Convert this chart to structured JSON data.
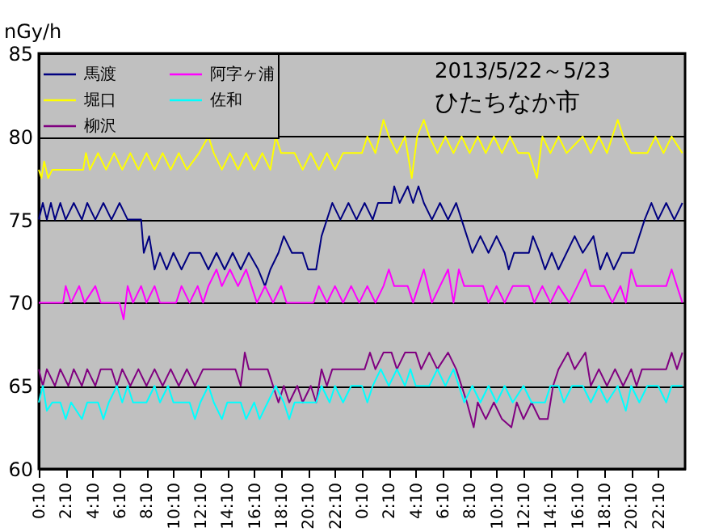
{
  "chart_data": {
    "type": "line",
    "title": "2013/5/22～5/23",
    "subtitle": "ひたちなか市",
    "ylabel": "nGy/h",
    "ylim": [
      60,
      85
    ],
    "yticks": [
      60,
      65,
      70,
      75,
      80,
      85
    ],
    "xlim": [
      "2013-05-22T00:10",
      "2013-05-24T00:10"
    ],
    "xticks": [
      {
        "value": "2013-05-22T00:10",
        "label": "0:10"
      },
      {
        "value": "2013-05-22T02:10",
        "label": "2:10"
      },
      {
        "value": "2013-05-22T04:10",
        "label": "4:10"
      },
      {
        "value": "2013-05-22T06:10",
        "label": "6:10"
      },
      {
        "value": "2013-05-22T08:10",
        "label": "8:10"
      },
      {
        "value": "2013-05-22T10:10",
        "label": "10:10"
      },
      {
        "value": "2013-05-22T12:10",
        "label": "12:10"
      },
      {
        "value": "2013-05-22T14:10",
        "label": "14:10"
      },
      {
        "value": "2013-05-22T16:10",
        "label": "16:10"
      },
      {
        "value": "2013-05-22T18:10",
        "label": "18:10"
      },
      {
        "value": "2013-05-22T20:10",
        "label": "20:10"
      },
      {
        "value": "2013-05-22T22:10",
        "label": "22:10"
      },
      {
        "value": "2013-05-23T00:10",
        "label": "0:10"
      },
      {
        "value": "2013-05-23T02:10",
        "label": "2:10"
      },
      {
        "value": "2013-05-23T04:10",
        "label": "4:10"
      },
      {
        "value": "2013-05-23T06:10",
        "label": "6:10"
      },
      {
        "value": "2013-05-23T08:10",
        "label": "8:10"
      },
      {
        "value": "2013-05-23T10:10",
        "label": "10:10"
      },
      {
        "value": "2013-05-23T12:10",
        "label": "12:10"
      },
      {
        "value": "2013-05-23T14:10",
        "label": "14:10"
      },
      {
        "value": "2013-05-23T16:10",
        "label": "16:10"
      },
      {
        "value": "2013-05-23T18:10",
        "label": "18:10"
      },
      {
        "value": "2013-05-23T20:10",
        "label": "20:10"
      },
      {
        "value": "2013-05-23T22:10",
        "label": "22:10"
      }
    ],
    "grid": "y",
    "legend": "top left",
    "series": [
      {
        "name": "馬渡",
        "color": "#000080",
        "x": [
          "2013-05-22T00:10",
          "2013-05-22T00:28",
          "2013-05-22T00:46",
          "2013-05-22T01:04",
          "2013-05-22T01:22",
          "2013-05-22T01:46",
          "2013-05-22T02:10",
          "2013-05-22T02:46",
          "2013-05-22T03:22",
          "2013-05-22T03:46",
          "2013-05-22T04:22",
          "2013-05-22T04:58",
          "2013-05-22T05:34",
          "2013-05-22T06:10",
          "2013-05-22T06:46",
          "2013-05-22T07:46",
          "2013-05-22T07:58",
          "2013-05-22T08:22",
          "2013-05-22T08:46",
          "2013-05-22T09:10",
          "2013-05-22T09:40",
          "2013-05-22T10:10",
          "2013-05-22T10:46",
          "2013-05-22T11:22",
          "2013-05-22T12:10",
          "2013-05-22T12:46",
          "2013-05-22T13:22",
          "2013-05-22T13:58",
          "2013-05-22T14:34",
          "2013-05-22T15:10",
          "2013-05-22T15:46",
          "2013-05-22T16:28",
          "2013-05-22T16:58",
          "2013-05-22T17:22",
          "2013-05-22T17:58",
          "2013-05-22T18:22",
          "2013-05-22T18:58",
          "2013-05-22T19:46",
          "2013-05-22T20:10",
          "2013-05-22T20:46",
          "2013-05-22T21:10",
          "2013-05-22T21:34",
          "2013-05-22T21:58",
          "2013-05-22T22:34",
          "2013-05-22T23:10",
          "2013-05-22T23:46",
          "2013-05-23T00:22",
          "2013-05-23T00:58",
          "2013-05-23T01:22",
          "2013-05-23T02:22",
          "2013-05-23T02:34",
          "2013-05-23T02:58",
          "2013-05-23T03:34",
          "2013-05-23T03:58",
          "2013-05-23T04:22",
          "2013-05-23T04:46",
          "2013-05-23T05:22",
          "2013-05-23T05:58",
          "2013-05-23T06:34",
          "2013-05-23T07:10",
          "2013-05-23T07:34",
          "2013-05-23T07:58",
          "2013-05-23T08:22",
          "2013-05-23T08:58",
          "2013-05-23T09:34",
          "2013-05-23T10:10",
          "2013-05-23T10:46",
          "2013-05-23T11:04",
          "2013-05-23T11:28",
          "2013-05-23T12:34",
          "2013-05-23T12:52",
          "2013-05-23T13:22",
          "2013-05-23T13:46",
          "2013-05-23T14:16",
          "2013-05-23T14:46",
          "2013-05-23T15:22",
          "2013-05-23T15:58",
          "2013-05-23T16:34",
          "2013-05-23T17:22",
          "2013-05-23T17:52",
          "2013-05-23T18:22",
          "2013-05-23T18:52",
          "2013-05-23T19:28",
          "2013-05-23T20:22",
          "2013-05-23T20:46",
          "2013-05-23T21:10",
          "2013-05-23T21:40",
          "2013-05-23T22:10",
          "2013-05-23T22:46",
          "2013-05-23T23:22",
          "2013-05-23T23:58"
        ],
        "values": [
          75,
          76,
          75,
          76,
          75,
          76,
          75,
          76,
          75,
          76,
          75,
          76,
          75,
          76,
          75,
          75,
          73,
          74,
          72,
          73,
          72,
          73,
          72,
          73,
          73,
          72,
          73,
          72,
          73,
          72,
          73,
          72,
          71,
          72,
          73,
          74,
          73,
          73,
          72,
          72,
          74,
          75,
          76,
          75,
          76,
          75,
          76,
          75,
          76,
          76,
          77,
          76,
          77,
          76,
          77,
          76,
          75,
          76,
          75,
          76,
          75,
          74,
          73,
          74,
          73,
          74,
          73,
          72,
          73,
          73,
          74,
          73,
          72,
          73,
          72,
          73,
          74,
          73,
          74,
          72,
          73,
          72,
          73,
          73,
          74,
          75,
          76,
          75,
          76,
          75,
          76
        ]
      },
      {
        "name": "堀口",
        "color": "#ffff00",
        "x": [
          "2013-05-22T00:10",
          "2013-05-22T00:22",
          "2013-05-22T00:34",
          "2013-05-22T00:52",
          "2013-05-22T01:10",
          "2013-05-22T03:28",
          "2013-05-22T03:40",
          "2013-05-22T03:58",
          "2013-05-22T04:34",
          "2013-05-22T05:10",
          "2013-05-22T05:46",
          "2013-05-22T06:22",
          "2013-05-22T06:58",
          "2013-05-22T07:34",
          "2013-05-22T08:10",
          "2013-05-22T08:46",
          "2013-05-22T09:22",
          "2013-05-22T09:58",
          "2013-05-22T10:34",
          "2013-05-22T11:10",
          "2013-05-22T12:04",
          "2013-05-22T12:46",
          "2013-05-22T13:10",
          "2013-05-22T13:46",
          "2013-05-22T14:22",
          "2013-05-22T14:58",
          "2013-05-22T15:34",
          "2013-05-22T16:10",
          "2013-05-22T16:46",
          "2013-05-22T17:22",
          "2013-05-22T17:46",
          "2013-05-22T18:10",
          "2013-05-22T19:10",
          "2013-05-22T19:46",
          "2013-05-22T20:22",
          "2013-05-22T20:58",
          "2013-05-22T21:34",
          "2013-05-22T22:10",
          "2013-05-22T22:46",
          "2013-05-22T23:34",
          "2013-05-23T00:10",
          "2013-05-23T00:34",
          "2013-05-23T01:10",
          "2013-05-23T01:46",
          "2013-05-23T02:10",
          "2013-05-23T02:46",
          "2013-05-23T03:22",
          "2013-05-23T03:52",
          "2013-05-23T04:16",
          "2013-05-23T04:46",
          "2013-05-23T05:10",
          "2013-05-23T05:46",
          "2013-05-23T06:22",
          "2013-05-23T06:58",
          "2013-05-23T07:34",
          "2013-05-23T08:10",
          "2013-05-23T08:46",
          "2013-05-23T09:22",
          "2013-05-23T09:58",
          "2013-05-23T10:34",
          "2013-05-23T11:10",
          "2013-05-23T11:46",
          "2013-05-23T12:34",
          "2013-05-23T13:10",
          "2013-05-23T13:34",
          "2013-05-23T14:10",
          "2013-05-23T14:46",
          "2013-05-23T15:22",
          "2013-05-23T16:34",
          "2013-05-23T17:10",
          "2013-05-23T17:46",
          "2013-05-23T18:22",
          "2013-05-23T19:10",
          "2013-05-23T19:34",
          "2013-05-23T20:10",
          "2013-05-23T21:22",
          "2013-05-23T21:58",
          "2013-05-23T22:34",
          "2013-05-23T23:10",
          "2013-05-23T23:58"
        ],
        "values": [
          78,
          77.5,
          78.5,
          77.5,
          78,
          78,
          79,
          78,
          79,
          78,
          79,
          78,
          79,
          78,
          79,
          78,
          79,
          78,
          79,
          78,
          79,
          80,
          79,
          78,
          79,
          78,
          79,
          78,
          79,
          78,
          80,
          79,
          79,
          78,
          79,
          78,
          79,
          78,
          79,
          79,
          79,
          80,
          79,
          81,
          80,
          79,
          80,
          77.5,
          80,
          81,
          80,
          79,
          80,
          79,
          80,
          79,
          80,
          79,
          80,
          79,
          80,
          79,
          79,
          77.5,
          80,
          79,
          80,
          79,
          80,
          79,
          80,
          79,
          81,
          80,
          79,
          79,
          80,
          79,
          80,
          79
        ]
      },
      {
        "name": "柳沢",
        "color": "#800080",
        "x": [
          "2013-05-22T00:10",
          "2013-05-22T00:28",
          "2013-05-22T00:46",
          "2013-05-22T01:22",
          "2013-05-22T01:46",
          "2013-05-22T02:22",
          "2013-05-22T02:46",
          "2013-05-22T03:22",
          "2013-05-22T03:46",
          "2013-05-22T04:22",
          "2013-05-22T04:46",
          "2013-05-22T05:34",
          "2013-05-22T05:58",
          "2013-05-22T06:22",
          "2013-05-22T06:58",
          "2013-05-22T07:34",
          "2013-05-22T08:10",
          "2013-05-22T08:46",
          "2013-05-22T09:22",
          "2013-05-22T09:58",
          "2013-05-22T10:34",
          "2013-05-22T11:10",
          "2013-05-22T11:46",
          "2013-05-22T12:22",
          "2013-05-22T14:46",
          "2013-05-22T15:10",
          "2013-05-22T15:28",
          "2013-05-22T15:46",
          "2013-05-22T17:10",
          "2013-05-22T17:34",
          "2013-05-22T17:58",
          "2013-05-22T18:22",
          "2013-05-22T18:46",
          "2013-05-22T19:22",
          "2013-05-22T19:46",
          "2013-05-22T20:22",
          "2013-05-22T20:46",
          "2013-05-22T21:10",
          "2013-05-22T21:34",
          "2013-05-22T21:58",
          "2013-05-23T00:22",
          "2013-05-23T00:46",
          "2013-05-23T01:10",
          "2013-05-23T01:46",
          "2013-05-23T02:22",
          "2013-05-23T02:46",
          "2013-05-23T03:22",
          "2013-05-23T04:10",
          "2013-05-23T04:34",
          "2013-05-23T05:10",
          "2013-05-23T05:46",
          "2013-05-23T06:34",
          "2013-05-23T07:10",
          "2013-05-23T07:34",
          "2013-05-23T07:58",
          "2013-05-23T08:28",
          "2013-05-23T08:46",
          "2013-05-23T09:22",
          "2013-05-23T09:58",
          "2013-05-23T10:34",
          "2013-05-23T11:16",
          "2013-05-23T11:40",
          "2013-05-23T12:10",
          "2013-05-23T12:46",
          "2013-05-23T13:22",
          "2013-05-23T13:58",
          "2013-05-23T14:22",
          "2013-05-23T14:46",
          "2013-05-23T15:28",
          "2013-05-23T15:58",
          "2013-05-23T16:46",
          "2013-05-23T17:10",
          "2013-05-23T17:46",
          "2013-05-23T18:22",
          "2013-05-23T18:58",
          "2013-05-23T19:34",
          "2013-05-23T20:10",
          "2013-05-23T20:34",
          "2013-05-23T20:58",
          "2013-05-23T22:46",
          "2013-05-23T23:10",
          "2013-05-23T23:34",
          "2013-05-23T23:58"
        ],
        "values": [
          66,
          65,
          66,
          65,
          66,
          65,
          66,
          65,
          66,
          65,
          66,
          66,
          65,
          66,
          65,
          66,
          65,
          66,
          65,
          66,
          65,
          66,
          65,
          66,
          66,
          65,
          67,
          66,
          66,
          65,
          64,
          65,
          64,
          65,
          64,
          65,
          64,
          66,
          65,
          66,
          66,
          67,
          66,
          67,
          67,
          66,
          67,
          67,
          66,
          67,
          66,
          67,
          66,
          65,
          64,
          62.5,
          64,
          63,
          64,
          63,
          62.5,
          64,
          63,
          64,
          63,
          63,
          65,
          66,
          67,
          66,
          67,
          65,
          66,
          65,
          66,
          65,
          66,
          65,
          66,
          66,
          67,
          66,
          67
        ]
      },
      {
        "name": "阿字ヶ浦",
        "color": "#ff00ff",
        "x": [
          "2013-05-22T00:10",
          "2013-05-22T01:58",
          "2013-05-22T02:10",
          "2013-05-22T02:34",
          "2013-05-22T03:10",
          "2013-05-22T03:34",
          "2013-05-22T04:22",
          "2013-05-22T04:46",
          "2013-05-22T06:10",
          "2013-05-22T06:28",
          "2013-05-22T06:46",
          "2013-05-22T07:10",
          "2013-05-22T07:46",
          "2013-05-22T08:10",
          "2013-05-22T08:46",
          "2013-05-22T09:10",
          "2013-05-22T10:22",
          "2013-05-22T10:46",
          "2013-05-22T11:22",
          "2013-05-22T11:58",
          "2013-05-22T12:22",
          "2013-05-22T12:46",
          "2013-05-22T13:22",
          "2013-05-22T13:46",
          "2013-05-22T14:22",
          "2013-05-22T14:58",
          "2013-05-22T15:34",
          "2013-05-22T15:58",
          "2013-05-22T16:22",
          "2013-05-22T16:58",
          "2013-05-22T17:34",
          "2013-05-22T18:10",
          "2013-05-22T18:34",
          "2013-05-22T20:34",
          "2013-05-22T20:58",
          "2013-05-22T21:34",
          "2013-05-22T22:10",
          "2013-05-22T22:46",
          "2013-05-22T23:22",
          "2013-05-22T23:58",
          "2013-05-23T00:34",
          "2013-05-23T01:10",
          "2013-05-23T01:46",
          "2013-05-23T02:10",
          "2013-05-23T02:34",
          "2013-05-23T03:34",
          "2013-05-23T03:58",
          "2013-05-23T04:22",
          "2013-05-23T04:46",
          "2013-05-23T05:22",
          "2013-05-23T05:58",
          "2013-05-23T06:34",
          "2013-05-23T06:58",
          "2013-05-23T07:22",
          "2013-05-23T07:46",
          "2013-05-23T09:10",
          "2013-05-23T09:34",
          "2013-05-23T10:10",
          "2013-05-23T10:46",
          "2013-05-23T11:22",
          "2013-05-23T12:34",
          "2013-05-23T12:58",
          "2013-05-23T13:34",
          "2013-05-23T14:10",
          "2013-05-23T14:46",
          "2013-05-23T15:34",
          "2013-05-23T16:10",
          "2013-05-23T16:46",
          "2013-05-23T17:10",
          "2013-05-23T18:10",
          "2013-05-23T18:46",
          "2013-05-23T19:22",
          "2013-05-23T19:46",
          "2013-05-23T20:10",
          "2013-05-23T20:34",
          "2013-05-23T22:46",
          "2013-05-23T23:10",
          "2013-05-23T23:34",
          "2013-05-23T23:58"
        ],
        "values": [
          70,
          70,
          71,
          70,
          71,
          70,
          71,
          70,
          70,
          69,
          71,
          70,
          71,
          70,
          71,
          70,
          70,
          71,
          70,
          71,
          70,
          71,
          72,
          71,
          72,
          71,
          72,
          71,
          70,
          71,
          70,
          71,
          70,
          70,
          71,
          70,
          71,
          70,
          71,
          70,
          71,
          70,
          71,
          72,
          71,
          71,
          70,
          71,
          72,
          70,
          71,
          72,
          70,
          72,
          71,
          71,
          70,
          71,
          70,
          71,
          71,
          70,
          71,
          70,
          71,
          70,
          71,
          72,
          71,
          71,
          70,
          71,
          70,
          72,
          71,
          71,
          72,
          71,
          70
        ]
      },
      {
        "name": "佐和",
        "color": "#00ffff",
        "x": [
          "2013-05-22T00:10",
          "2013-05-22T00:28",
          "2013-05-22T00:46",
          "2013-05-22T01:10",
          "2013-05-22T01:46",
          "2013-05-22T02:10",
          "2013-05-22T02:34",
          "2013-05-22T03:22",
          "2013-05-22T03:46",
          "2013-05-22T04:34",
          "2013-05-22T04:58",
          "2013-05-22T05:22",
          "2013-05-22T05:58",
          "2013-05-22T06:22",
          "2013-05-22T06:46",
          "2013-05-22T07:10",
          "2013-05-22T08:10",
          "2013-05-22T08:46",
          "2013-05-22T09:10",
          "2013-05-22T09:46",
          "2013-05-22T10:10",
          "2013-05-22T11:22",
          "2013-05-22T11:46",
          "2013-05-22T12:10",
          "2013-05-22T12:46",
          "2013-05-22T13:10",
          "2013-05-22T13:46",
          "2013-05-22T14:10",
          "2013-05-22T15:10",
          "2013-05-22T15:34",
          "2013-05-22T16:10",
          "2013-05-22T16:34",
          "2013-05-22T17:10",
          "2013-05-22T17:46",
          "2013-05-22T18:22",
          "2013-05-22T18:46",
          "2013-05-22T19:10",
          "2013-05-22T20:46",
          "2013-05-22T21:10",
          "2013-05-22T21:46",
          "2013-05-22T22:10",
          "2013-05-22T22:46",
          "2013-05-22T23:22",
          "2013-05-23T00:10",
          "2013-05-23T00:34",
          "2013-05-23T00:58",
          "2013-05-23T01:34",
          "2013-05-23T02:10",
          "2013-05-23T02:46",
          "2013-05-23T03:22",
          "2013-05-23T03:46",
          "2013-05-23T04:10",
          "2013-05-23T05:10",
          "2013-05-23T05:46",
          "2013-05-23T06:22",
          "2013-05-23T06:58",
          "2013-05-23T07:22",
          "2013-05-23T07:46",
          "2013-05-23T08:22",
          "2013-05-23T08:58",
          "2013-05-23T09:34",
          "2013-05-23T10:10",
          "2013-05-23T10:46",
          "2013-05-23T11:22",
          "2013-05-23T12:10",
          "2013-05-23T12:46",
          "2013-05-23T13:46",
          "2013-05-23T14:10",
          "2013-05-23T14:46",
          "2013-05-23T15:10",
          "2013-05-23T15:46",
          "2013-05-23T16:34",
          "2013-05-23T17:10",
          "2013-05-23T17:46",
          "2013-05-23T18:22",
          "2013-05-23T19:10",
          "2013-05-23T19:46",
          "2013-05-23T20:10",
          "2013-05-23T20:46",
          "2013-05-23T21:22",
          "2013-05-23T22:10",
          "2013-05-23T22:46",
          "2013-05-23T23:10",
          "2013-05-23T23:58"
        ],
        "values": [
          64,
          65,
          63.5,
          64,
          64,
          63,
          64,
          63,
          64,
          64,
          63,
          64,
          65,
          64,
          65,
          64,
          64,
          65,
          64,
          65,
          64,
          64,
          63,
          64,
          65,
          64,
          63,
          64,
          64,
          63,
          64,
          63,
          64,
          65,
          64,
          63,
          64,
          64,
          65,
          64,
          65,
          64,
          65,
          65,
          64,
          65,
          66,
          65,
          66,
          65,
          66,
          65,
          65,
          66,
          65,
          66,
          65,
          64,
          65,
          64,
          65,
          64,
          65,
          64,
          65,
          64,
          64,
          65,
          65,
          64,
          65,
          65,
          64,
          65,
          64,
          65,
          63.5,
          65,
          64,
          65,
          65,
          64,
          65,
          65
        ]
      }
    ]
  }
}
